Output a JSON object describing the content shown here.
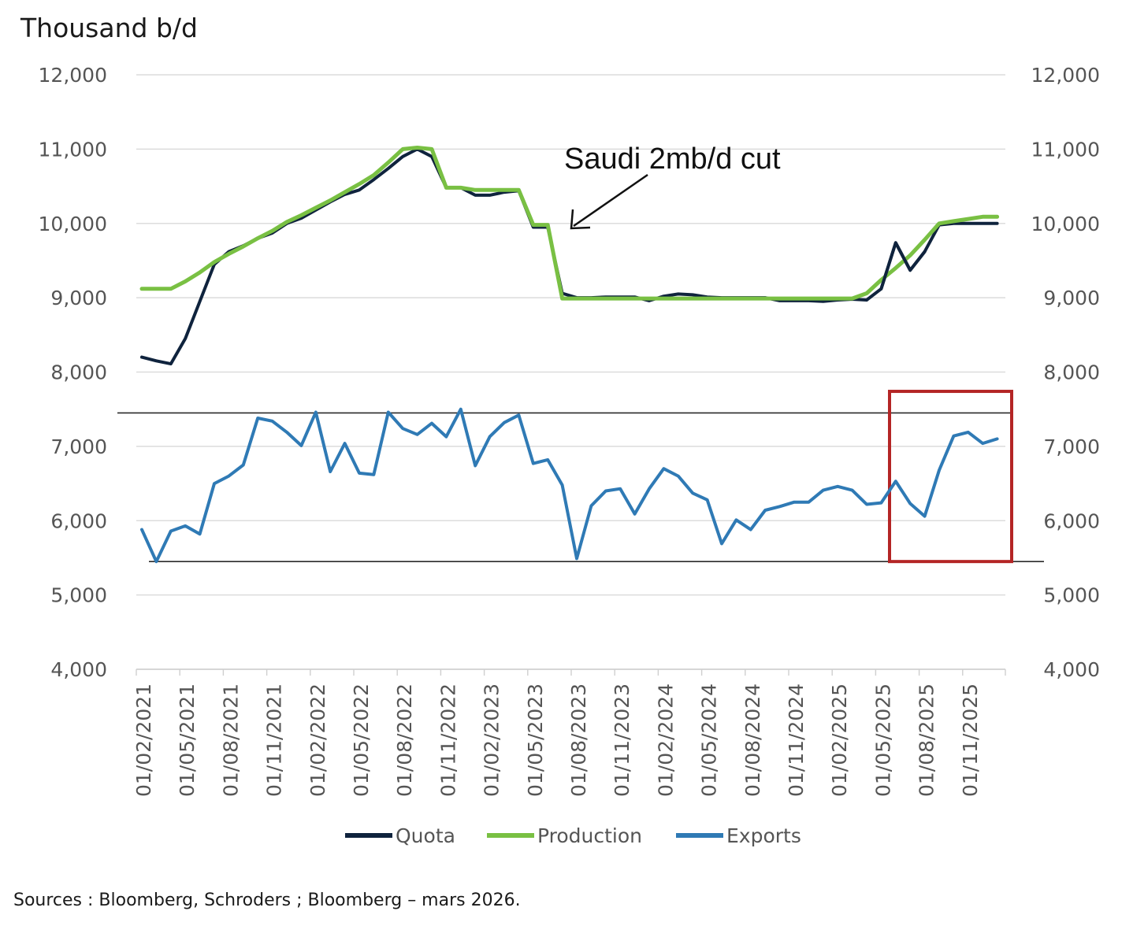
{
  "chart_data": {
    "type": "line",
    "unit_title": "Thousand b/d",
    "ylim": [
      4000,
      12000
    ],
    "y_ticks": [
      {
        "value": 4000,
        "label": "4,000"
      },
      {
        "value": 5000,
        "label": "5,000"
      },
      {
        "value": 6000,
        "label": "6,000"
      },
      {
        "value": 7000,
        "label": "7,000"
      },
      {
        "value": 8000,
        "label": "8,000"
      },
      {
        "value": 9000,
        "label": "9,000"
      },
      {
        "value": 10000,
        "label": "10,000"
      },
      {
        "value": 11000,
        "label": "11,000"
      },
      {
        "value": 12000,
        "label": "12,000"
      }
    ],
    "x_index_range": [
      0,
      60
    ],
    "x_ticks": [
      {
        "index": 0,
        "label": "01/02/2021"
      },
      {
        "index": 3,
        "label": "01/05/2021"
      },
      {
        "index": 6,
        "label": "01/08/2021"
      },
      {
        "index": 9,
        "label": "01/11/2021"
      },
      {
        "index": 12,
        "label": "01/02/2022"
      },
      {
        "index": 15,
        "label": "01/05/2022"
      },
      {
        "index": 18,
        "label": "01/08/2022"
      },
      {
        "index": 21,
        "label": "01/11/2022"
      },
      {
        "index": 24,
        "label": "01/02/2023"
      },
      {
        "index": 27,
        "label": "01/05/2023"
      },
      {
        "index": 30,
        "label": "01/08/2023"
      },
      {
        "index": 33,
        "label": "01/11/2023"
      },
      {
        "index": 36,
        "label": "01/02/2024"
      },
      {
        "index": 39,
        "label": "01/05/2024"
      },
      {
        "index": 42,
        "label": "01/08/2024"
      },
      {
        "index": 45,
        "label": "01/11/2024"
      },
      {
        "index": 48,
        "label": "01/02/2025"
      },
      {
        "index": 51,
        "label": "01/05/2025"
      },
      {
        "index": 54,
        "label": "01/08/2025"
      },
      {
        "index": 57,
        "label": "01/11/2025"
      }
    ],
    "series": [
      {
        "name": "Quota",
        "color": "#0f233d",
        "x": [
          0,
          1,
          2,
          3,
          4,
          5,
          6,
          7,
          8,
          9,
          10,
          11,
          12,
          13,
          14,
          15,
          16,
          17,
          18,
          19,
          20,
          21,
          22,
          23,
          24,
          25,
          26,
          27,
          28,
          29,
          30,
          31,
          32,
          33,
          34,
          35,
          36,
          37,
          38,
          39,
          40,
          41,
          42,
          43,
          44,
          45,
          46,
          47,
          48,
          49,
          50,
          51,
          52,
          53,
          54,
          55,
          56,
          57,
          58,
          59
        ],
        "values": [
          8200,
          8150,
          8110,
          8450,
          8950,
          9450,
          9620,
          9700,
          9800,
          9870,
          10000,
          10070,
          10180,
          10290,
          10390,
          10450,
          10590,
          10740,
          10900,
          11000,
          10900,
          10480,
          10480,
          10380,
          10380,
          10420,
          10440,
          9950,
          9950,
          9060,
          9000,
          9000,
          9010,
          9010,
          9010,
          8960,
          9020,
          9050,
          9040,
          9010,
          9000,
          9000,
          9000,
          9000,
          8960,
          8960,
          8960,
          8950,
          8970,
          8980,
          8970,
          9120,
          9740,
          9370,
          9620,
          9980,
          10000,
          10000,
          10000,
          10000
        ]
      },
      {
        "name": "Production",
        "color": "#79c043",
        "x": [
          0,
          1,
          2,
          3,
          4,
          5,
          6,
          7,
          8,
          9,
          10,
          11,
          12,
          13,
          14,
          15,
          16,
          17,
          18,
          19,
          20,
          21,
          22,
          23,
          24,
          25,
          26,
          27,
          28,
          29,
          30,
          31,
          32,
          33,
          34,
          35,
          36,
          37,
          38,
          39,
          40,
          41,
          42,
          43,
          44,
          45,
          46,
          47,
          48,
          49,
          50,
          51,
          52,
          53,
          54,
          55,
          56,
          57,
          58,
          59
        ],
        "values": [
          9120,
          9120,
          9120,
          9220,
          9340,
          9480,
          9590,
          9690,
          9800,
          9900,
          10020,
          10110,
          10210,
          10310,
          10420,
          10530,
          10650,
          10820,
          11000,
          11020,
          11000,
          10480,
          10480,
          10450,
          10450,
          10450,
          10450,
          9980,
          9980,
          8990,
          8990,
          8990,
          8990,
          8990,
          8990,
          8990,
          8990,
          8990,
          8990,
          8990,
          8990,
          8990,
          8990,
          8990,
          8990,
          8990,
          8990,
          8990,
          8990,
          8990,
          9060,
          9240,
          9400,
          9570,
          9780,
          10000,
          10030,
          10060,
          10090,
          10090
        ]
      },
      {
        "name": "Exports",
        "color": "#2f7ab5",
        "x": [
          0,
          1,
          2,
          3,
          4,
          5,
          6,
          7,
          8,
          9,
          10,
          11,
          12,
          13,
          14,
          15,
          16,
          17,
          18,
          19,
          20,
          21,
          22,
          23,
          24,
          25,
          26,
          27,
          28,
          29,
          30,
          31,
          32,
          33,
          34,
          35,
          36,
          37,
          38,
          39,
          40,
          41,
          42,
          43,
          44,
          45,
          46,
          47,
          48,
          49,
          50,
          51,
          52,
          53,
          54,
          55,
          56,
          57,
          58,
          59
        ],
        "values": [
          5880,
          5450,
          5860,
          5930,
          5820,
          6500,
          6600,
          6750,
          7380,
          7340,
          7190,
          7010,
          7460,
          6660,
          7040,
          6640,
          6620,
          7460,
          7240,
          7160,
          7310,
          7130,
          7500,
          6740,
          7130,
          7320,
          7420,
          6770,
          6820,
          6480,
          5490,
          6200,
          6400,
          6430,
          6090,
          6430,
          6700,
          6600,
          6370,
          6280,
          5690,
          6010,
          5880,
          6140,
          6190,
          6250,
          6250,
          6410,
          6460,
          6410,
          6220,
          6240,
          6530,
          6230,
          6060,
          6680,
          7140,
          7190,
          7040,
          7100
        ]
      }
    ],
    "annotations": [
      {
        "type": "text-arrow",
        "text": "Saudi 2mb/d cut",
        "points_to_index": 29,
        "points_to_value": 9950
      },
      {
        "type": "hline",
        "value": 7450
      },
      {
        "type": "hline",
        "value": 5450
      },
      {
        "type": "highlight-box",
        "index_from": 51.3,
        "index_to": 59.9,
        "value_from": 5450,
        "value_to": 7740
      }
    ],
    "legend": {
      "position": "bottom",
      "items": [
        "Quota",
        "Production",
        "Exports"
      ]
    }
  },
  "source_text": "Sources : Bloomberg, Schroders ; Bloomberg – mars 2026."
}
